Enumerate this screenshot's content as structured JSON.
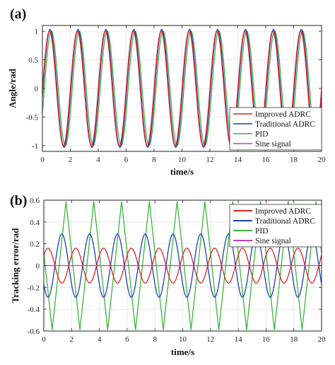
{
  "chart_data": [
    {
      "panel_label": "(a)",
      "type": "line",
      "xlabel": "time/s",
      "ylabel": "Angle/rad",
      "xlim": [
        0,
        20
      ],
      "ylim": [
        -1.1,
        1.1
      ],
      "xticks": [
        0,
        2,
        4,
        6,
        8,
        10,
        12,
        14,
        16,
        18,
        20
      ],
      "yticks": [
        -1,
        -0.5,
        0,
        0.5,
        1
      ],
      "ytick_labels": [
        "-1",
        "-0.5",
        "0",
        "0.5",
        "1"
      ],
      "grid": true,
      "legend_position": "bottom-right",
      "signal": {
        "shape": "sinusoid",
        "period_s": 2,
        "amplitude_rad": 1.0
      },
      "series": [
        {
          "name": "Improved ADRC",
          "color": "#d62728",
          "amplitude": 1.0,
          "phase_lag_s": 0.02
        },
        {
          "name": "Traditional ADRC",
          "color": "#1f3fb4",
          "amplitude": 1.03,
          "phase_lag_s": 0.05
        },
        {
          "name": "PID",
          "color": "#3cb43c",
          "amplitude": 1.0,
          "phase_lag_s": 0.14
        },
        {
          "name": "Sine signal",
          "color": "#c040c0",
          "amplitude": 1.0,
          "phase_lag_s": 0.0
        }
      ]
    },
    {
      "panel_label": "(b)",
      "type": "line",
      "xlabel": "time/s",
      "ylabel": "Tracking error/rad",
      "xlim": [
        0,
        20
      ],
      "ylim": [
        -0.6,
        0.6
      ],
      "xticks": [
        0,
        2,
        4,
        6,
        8,
        10,
        12,
        14,
        16,
        18,
        20
      ],
      "yticks": [
        -0.6,
        -0.4,
        -0.2,
        0,
        0.2,
        0.4,
        0.6
      ],
      "ytick_labels": [
        "-0.6",
        "-0.4",
        "-0.2",
        "0",
        "0.2",
        "0.4",
        "0.6"
      ],
      "grid": true,
      "legend_position": "top-right",
      "series": [
        {
          "name": "Improved ADRC",
          "color": "#d62728",
          "amplitude": 0.16,
          "period_s": 2,
          "peak_times_s": [
            0.3,
            2.3,
            4.3,
            6.3,
            8.3,
            10.3,
            12.3,
            14.3,
            16.3,
            18.3
          ]
        },
        {
          "name": "Traditional ADRC",
          "color": "#1f3fb4",
          "amplitude": 0.29,
          "period_s": 2,
          "peak_times_s": [
            1.3,
            3.3,
            5.3,
            7.3,
            9.3,
            11.3,
            13.3,
            15.3,
            17.3,
            19.3
          ]
        },
        {
          "name": "PID",
          "color": "#3cb43c",
          "amplitude": 0.59,
          "period_s": 2,
          "peak_times_s": [
            1.6,
            3.6,
            5.6,
            7.6,
            9.6,
            11.6,
            13.6,
            15.6,
            17.6,
            19.6
          ]
        },
        {
          "name": "Sine signal",
          "color": "#c040c0",
          "value": 0
        }
      ]
    }
  ]
}
